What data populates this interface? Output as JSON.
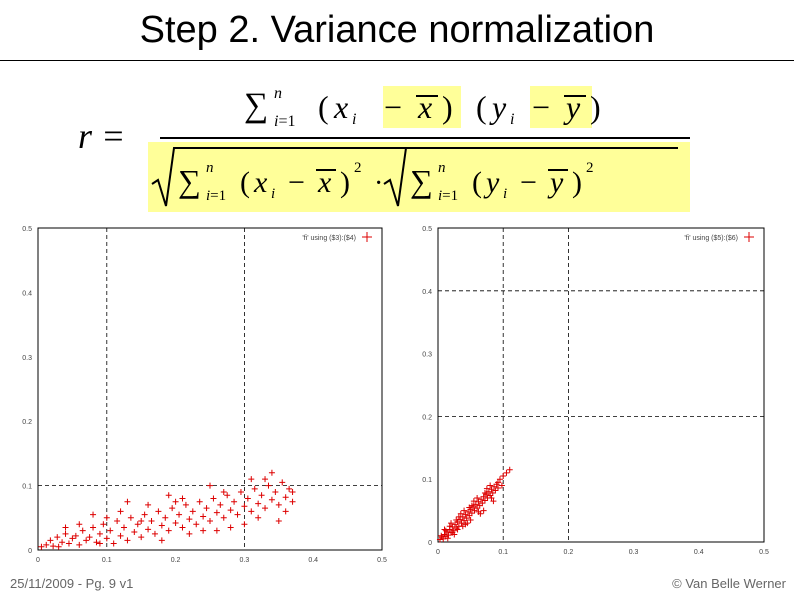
{
  "slide": {
    "title": "Step 2. Variance normalization",
    "footer_left": "25/11/2009 - Pg. 9 v1",
    "footer_right": "© Van Belle Werner"
  },
  "formula": {
    "lhs": "r =",
    "highlight_color": "#ffff99"
  },
  "chart_data": [
    {
      "type": "scatter",
      "legend": "'fi' using ($3):($4)",
      "legend_position": "top-right",
      "xlim": [
        0,
        0.5
      ],
      "ylim": [
        0,
        0.5
      ],
      "xticks": [
        "0",
        "0.1",
        "0.2",
        "0.3",
        "0.4",
        "0.5"
      ],
      "yticks": [
        "0",
        "0.1",
        "0.2",
        "0.3",
        "0.4",
        "0.5"
      ],
      "grid_x": [
        0.1,
        0.3
      ],
      "grid_y": [
        0.1
      ],
      "color": "#dd0000",
      "points": [
        [
          0.005,
          0.005
        ],
        [
          0.012,
          0.008
        ],
        [
          0.018,
          0.015
        ],
        [
          0.022,
          0.006
        ],
        [
          0.028,
          0.02
        ],
        [
          0.035,
          0.012
        ],
        [
          0.04,
          0.025
        ],
        [
          0.045,
          0.01
        ],
        [
          0.05,
          0.018
        ],
        [
          0.055,
          0.022
        ],
        [
          0.06,
          0.008
        ],
        [
          0.065,
          0.03
        ],
        [
          0.07,
          0.015
        ],
        [
          0.075,
          0.02
        ],
        [
          0.08,
          0.035
        ],
        [
          0.085,
          0.012
        ],
        [
          0.09,
          0.025
        ],
        [
          0.095,
          0.04
        ],
        [
          0.1,
          0.018
        ],
        [
          0.105,
          0.03
        ],
        [
          0.11,
          0.01
        ],
        [
          0.115,
          0.045
        ],
        [
          0.12,
          0.022
        ],
        [
          0.125,
          0.035
        ],
        [
          0.13,
          0.015
        ],
        [
          0.135,
          0.05
        ],
        [
          0.14,
          0.028
        ],
        [
          0.145,
          0.04
        ],
        [
          0.15,
          0.02
        ],
        [
          0.155,
          0.055
        ],
        [
          0.16,
          0.032
        ],
        [
          0.165,
          0.045
        ],
        [
          0.17,
          0.025
        ],
        [
          0.175,
          0.06
        ],
        [
          0.18,
          0.038
        ],
        [
          0.185,
          0.05
        ],
        [
          0.19,
          0.03
        ],
        [
          0.195,
          0.065
        ],
        [
          0.2,
          0.042
        ],
        [
          0.205,
          0.055
        ],
        [
          0.21,
          0.035
        ],
        [
          0.215,
          0.07
        ],
        [
          0.22,
          0.048
        ],
        [
          0.225,
          0.06
        ],
        [
          0.23,
          0.04
        ],
        [
          0.235,
          0.075
        ],
        [
          0.24,
          0.052
        ],
        [
          0.245,
          0.065
        ],
        [
          0.25,
          0.045
        ],
        [
          0.255,
          0.08
        ],
        [
          0.26,
          0.058
        ],
        [
          0.265,
          0.07
        ],
        [
          0.27,
          0.05
        ],
        [
          0.275,
          0.085
        ],
        [
          0.28,
          0.062
        ],
        [
          0.285,
          0.075
        ],
        [
          0.29,
          0.055
        ],
        [
          0.295,
          0.09
        ],
        [
          0.3,
          0.068
        ],
        [
          0.305,
          0.08
        ],
        [
          0.31,
          0.06
        ],
        [
          0.315,
          0.095
        ],
        [
          0.32,
          0.072
        ],
        [
          0.325,
          0.085
        ],
        [
          0.33,
          0.065
        ],
        [
          0.335,
          0.1
        ],
        [
          0.34,
          0.078
        ],
        [
          0.345,
          0.09
        ],
        [
          0.35,
          0.07
        ],
        [
          0.355,
          0.105
        ],
        [
          0.36,
          0.082
        ],
        [
          0.365,
          0.095
        ],
        [
          0.37,
          0.075
        ],
        [
          0.03,
          0.005
        ],
        [
          0.06,
          0.04
        ],
        [
          0.09,
          0.01
        ],
        [
          0.12,
          0.06
        ],
        [
          0.15,
          0.045
        ],
        [
          0.18,
          0.015
        ],
        [
          0.21,
          0.08
        ],
        [
          0.24,
          0.03
        ],
        [
          0.27,
          0.09
        ],
        [
          0.3,
          0.04
        ],
        [
          0.33,
          0.11
        ],
        [
          0.36,
          0.06
        ],
        [
          0.2,
          0.075
        ],
        [
          0.25,
          0.1
        ],
        [
          0.28,
          0.035
        ],
        [
          0.32,
          0.05
        ],
        [
          0.34,
          0.12
        ],
        [
          0.37,
          0.09
        ],
        [
          0.1,
          0.05
        ],
        [
          0.13,
          0.075
        ],
        [
          0.16,
          0.07
        ],
        [
          0.19,
          0.085
        ],
        [
          0.22,
          0.025
        ],
        [
          0.26,
          0.03
        ],
        [
          0.31,
          0.11
        ],
        [
          0.35,
          0.045
        ],
        [
          0.08,
          0.055
        ],
        [
          0.04,
          0.035
        ]
      ]
    },
    {
      "type": "scatter",
      "legend": "'fi' using ($5):($6)",
      "legend_position": "top-right",
      "xlim": [
        0,
        0.5
      ],
      "ylim": [
        0,
        0.5
      ],
      "xticks": [
        "0",
        "0.1",
        "0.2",
        "0.3",
        "0.4",
        "0.5"
      ],
      "yticks": [
        "0",
        "0.1",
        "0.2",
        "0.3",
        "0.4",
        "0.5"
      ],
      "grid_x": [
        0.1,
        0.2
      ],
      "grid_y": [
        0.2,
        0.4
      ],
      "color": "#dd0000",
      "points": [
        [
          0.003,
          0.004
        ],
        [
          0.006,
          0.008
        ],
        [
          0.008,
          0.005
        ],
        [
          0.01,
          0.012
        ],
        [
          0.012,
          0.009
        ],
        [
          0.014,
          0.016
        ],
        [
          0.016,
          0.011
        ],
        [
          0.018,
          0.02
        ],
        [
          0.02,
          0.015
        ],
        [
          0.022,
          0.024
        ],
        [
          0.024,
          0.018
        ],
        [
          0.026,
          0.028
        ],
        [
          0.028,
          0.022
        ],
        [
          0.03,
          0.032
        ],
        [
          0.032,
          0.025
        ],
        [
          0.034,
          0.036
        ],
        [
          0.036,
          0.03
        ],
        [
          0.038,
          0.04
        ],
        [
          0.04,
          0.034
        ],
        [
          0.042,
          0.044
        ],
        [
          0.044,
          0.038
        ],
        [
          0.046,
          0.048
        ],
        [
          0.048,
          0.042
        ],
        [
          0.05,
          0.052
        ],
        [
          0.052,
          0.046
        ],
        [
          0.054,
          0.056
        ],
        [
          0.056,
          0.05
        ],
        [
          0.058,
          0.06
        ],
        [
          0.06,
          0.054
        ],
        [
          0.062,
          0.064
        ],
        [
          0.064,
          0.058
        ],
        [
          0.066,
          0.068
        ],
        [
          0.068,
          0.062
        ],
        [
          0.07,
          0.072
        ],
        [
          0.072,
          0.066
        ],
        [
          0.074,
          0.076
        ],
        [
          0.076,
          0.07
        ],
        [
          0.078,
          0.08
        ],
        [
          0.08,
          0.074
        ],
        [
          0.082,
          0.084
        ],
        [
          0.084,
          0.078
        ],
        [
          0.086,
          0.088
        ],
        [
          0.088,
          0.082
        ],
        [
          0.09,
          0.092
        ],
        [
          0.092,
          0.086
        ],
        [
          0.095,
          0.1
        ],
        [
          0.098,
          0.09
        ],
        [
          0.1,
          0.105
        ],
        [
          0.105,
          0.11
        ],
        [
          0.11,
          0.115
        ],
        [
          0.01,
          0.02
        ],
        [
          0.02,
          0.03
        ],
        [
          0.03,
          0.02
        ],
        [
          0.04,
          0.05
        ],
        [
          0.05,
          0.035
        ],
        [
          0.06,
          0.07
        ],
        [
          0.07,
          0.05
        ],
        [
          0.08,
          0.09
        ],
        [
          0.015,
          0.006
        ],
        [
          0.025,
          0.012
        ],
        [
          0.035,
          0.045
        ],
        [
          0.045,
          0.03
        ],
        [
          0.055,
          0.065
        ],
        [
          0.065,
          0.045
        ],
        [
          0.075,
          0.085
        ],
        [
          0.085,
          0.065
        ],
        [
          0.012,
          0.018
        ],
        [
          0.022,
          0.015
        ],
        [
          0.032,
          0.04
        ],
        [
          0.042,
          0.028
        ],
        [
          0.052,
          0.058
        ],
        [
          0.062,
          0.048
        ],
        [
          0.072,
          0.078
        ],
        [
          0.082,
          0.07
        ],
        [
          0.092,
          0.095
        ],
        [
          0.005,
          0.01
        ],
        [
          0.018,
          0.025
        ],
        [
          0.028,
          0.035
        ],
        [
          0.038,
          0.025
        ],
        [
          0.048,
          0.055
        ]
      ]
    }
  ]
}
